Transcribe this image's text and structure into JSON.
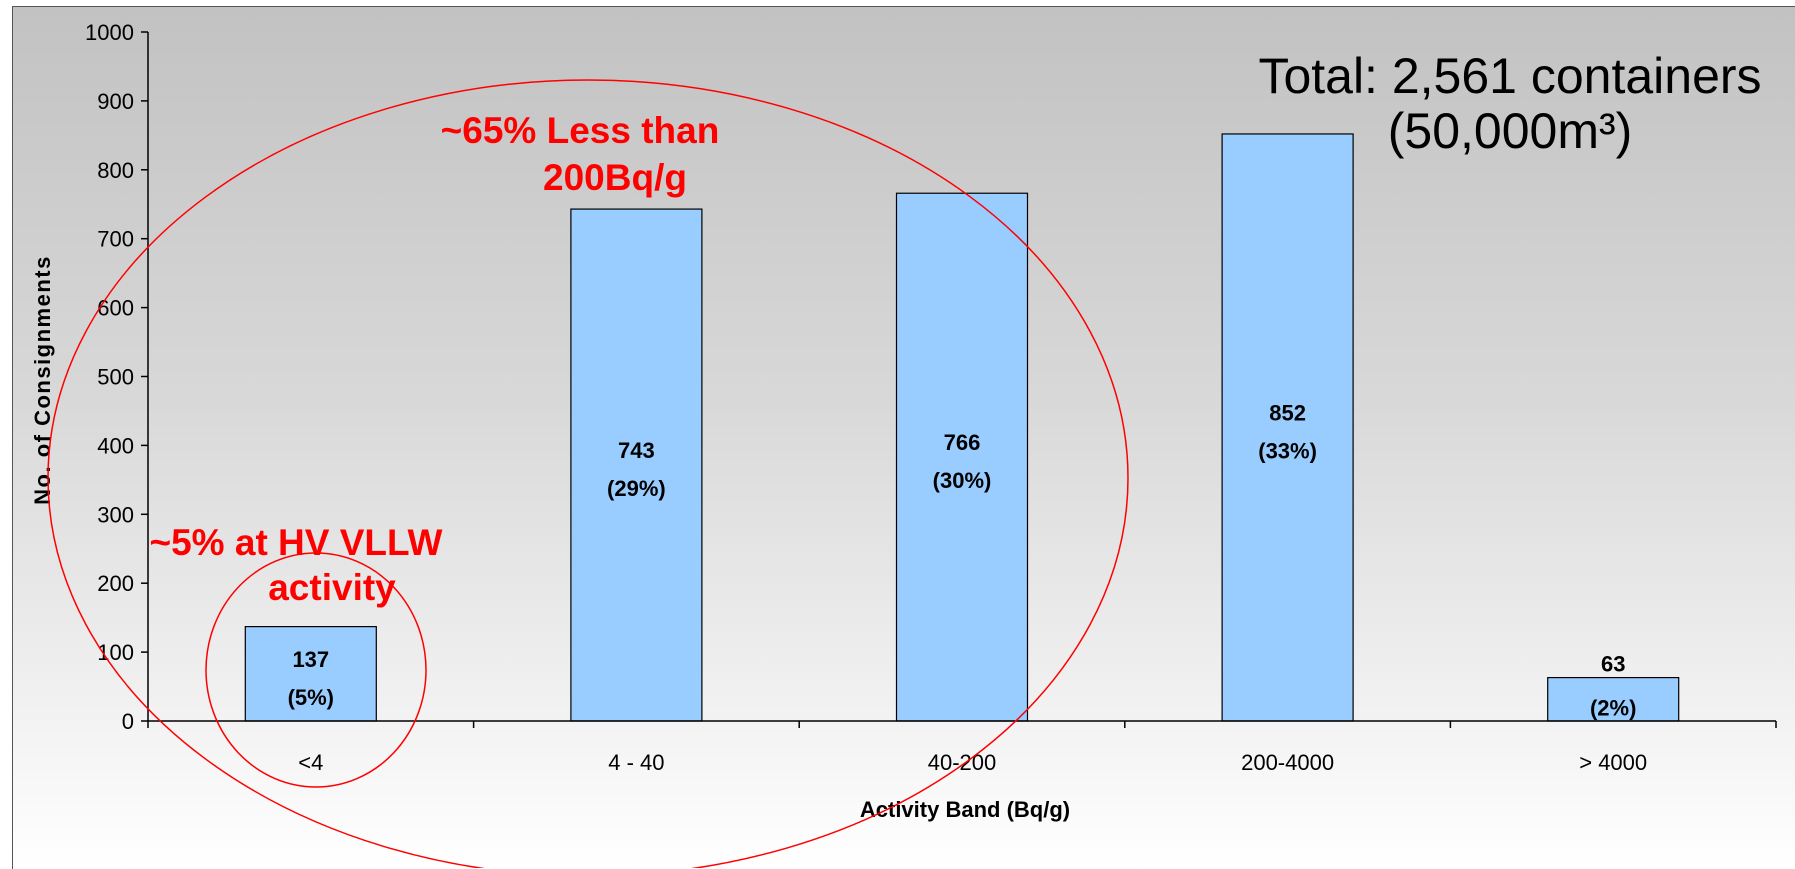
{
  "chart_data": {
    "type": "bar",
    "title": "",
    "xlabel": "Activity Band (Bq/g)",
    "ylabel": "No. of Consignments",
    "ylim": [
      0,
      1000
    ],
    "yticks": [
      0,
      100,
      200,
      300,
      400,
      500,
      600,
      700,
      800,
      900,
      1000
    ],
    "categories": [
      "<4",
      "4 - 40",
      "40-200",
      "200-4000",
      "> 4000"
    ],
    "values": [
      137,
      743,
      766,
      852,
      63
    ],
    "data_labels": [
      {
        "value": "137",
        "percent": "(5%)"
      },
      {
        "value": "743",
        "percent": "(29%)"
      },
      {
        "value": "766",
        "percent": "(30%)"
      },
      {
        "value": "852",
        "percent": "(33%)"
      },
      {
        "value": "63",
        "percent": "(2%)"
      }
    ],
    "bar_color": "#99ccff",
    "grid": false,
    "annotations": {
      "total_line1": "Total: 2,561 containers",
      "total_line2": "(50,000m³)",
      "large_group_line1": "~65% Less than",
      "large_group_line2": "200Bq/g",
      "small_group_line1": "~5% at HV VLLW",
      "small_group_line2": "activity",
      "annotation_color": "#ff0000"
    }
  }
}
